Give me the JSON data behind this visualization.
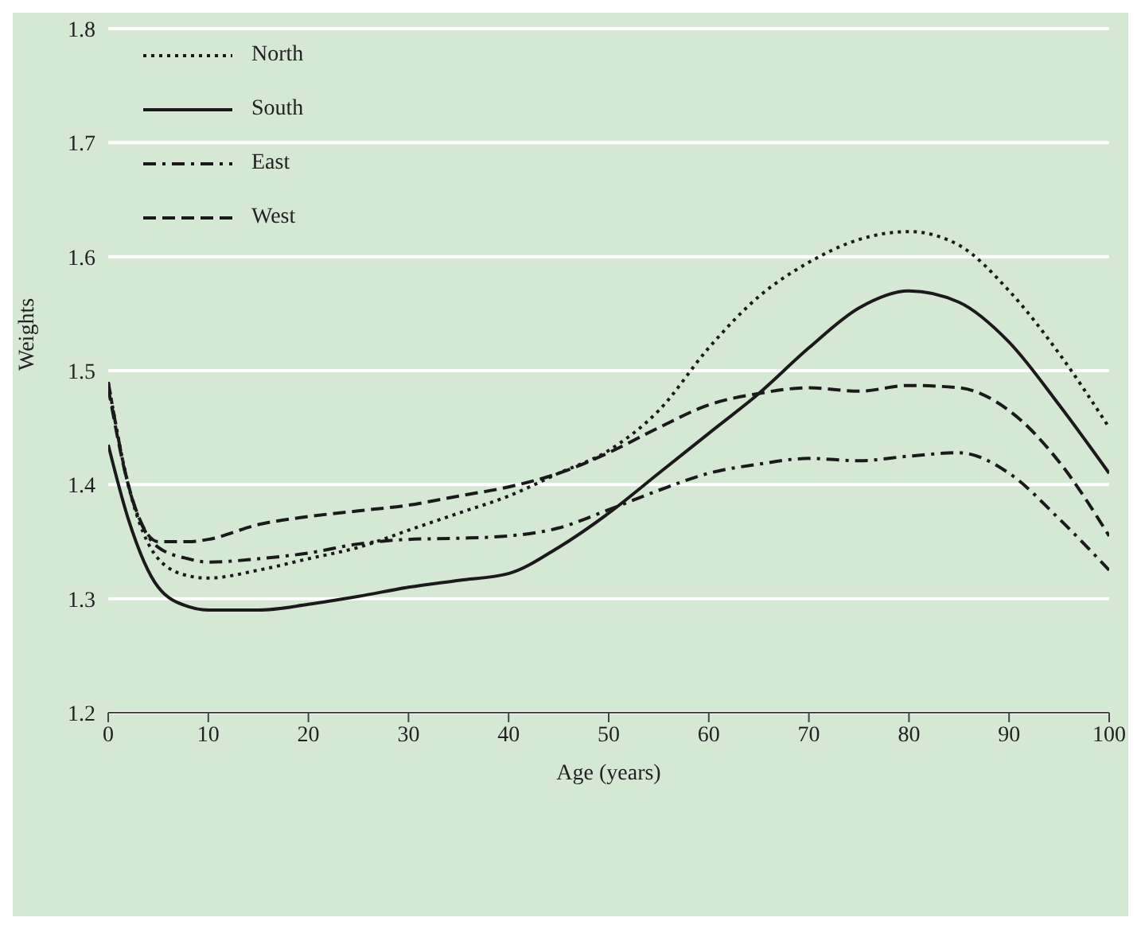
{
  "chart_data": {
    "type": "line",
    "xlabel": "Age (years)",
    "ylabel": "Weights",
    "x": [
      0,
      2,
      5,
      8,
      10,
      15,
      20,
      25,
      30,
      35,
      40,
      45,
      50,
      55,
      60,
      65,
      70,
      75,
      80,
      85,
      90,
      95,
      100
    ],
    "series": [
      {
        "name": "North",
        "color": "#1a1a1a",
        "line_style": "dotted",
        "values": [
          1.49,
          1.4,
          1.335,
          1.32,
          1.318,
          1.325,
          1.335,
          1.345,
          1.36,
          1.375,
          1.39,
          1.41,
          1.43,
          1.465,
          1.52,
          1.565,
          1.595,
          1.615,
          1.622,
          1.61,
          1.57,
          1.515,
          1.45
        ]
      },
      {
        "name": "South",
        "color": "#1a1a1a",
        "line_style": "solid",
        "values": [
          1.435,
          1.37,
          1.31,
          1.293,
          1.29,
          1.29,
          1.295,
          1.302,
          1.31,
          1.316,
          1.322,
          1.345,
          1.375,
          1.41,
          1.445,
          1.48,
          1.52,
          1.555,
          1.57,
          1.56,
          1.525,
          1.47,
          1.41
        ]
      },
      {
        "name": "East",
        "color": "#1a1a1a",
        "line_style": "dashdot",
        "values": [
          1.49,
          1.4,
          1.345,
          1.335,
          1.332,
          1.335,
          1.34,
          1.348,
          1.352,
          1.353,
          1.355,
          1.362,
          1.378,
          1.395,
          1.41,
          1.418,
          1.423,
          1.421,
          1.425,
          1.428,
          1.41,
          1.37,
          1.325
        ]
      },
      {
        "name": "West",
        "color": "#1a1a1a",
        "line_style": "dashed",
        "values": [
          1.485,
          1.4,
          1.35,
          1.35,
          1.352,
          1.365,
          1.372,
          1.377,
          1.382,
          1.39,
          1.398,
          1.41,
          1.428,
          1.45,
          1.47,
          1.48,
          1.485,
          1.482,
          1.487,
          1.485,
          1.465,
          1.42,
          1.355
        ]
      }
    ],
    "xlim": [
      0,
      100
    ],
    "xticks": [
      0,
      10,
      20,
      30,
      40,
      50,
      60,
      70,
      80,
      90,
      100
    ],
    "ylim": [
      1.2,
      1.8
    ],
    "yticks": [
      1.2,
      1.3,
      1.4,
      1.5,
      1.6,
      1.7,
      1.8
    ],
    "grid": "y",
    "legend": "top left",
    "marker": "none"
  }
}
